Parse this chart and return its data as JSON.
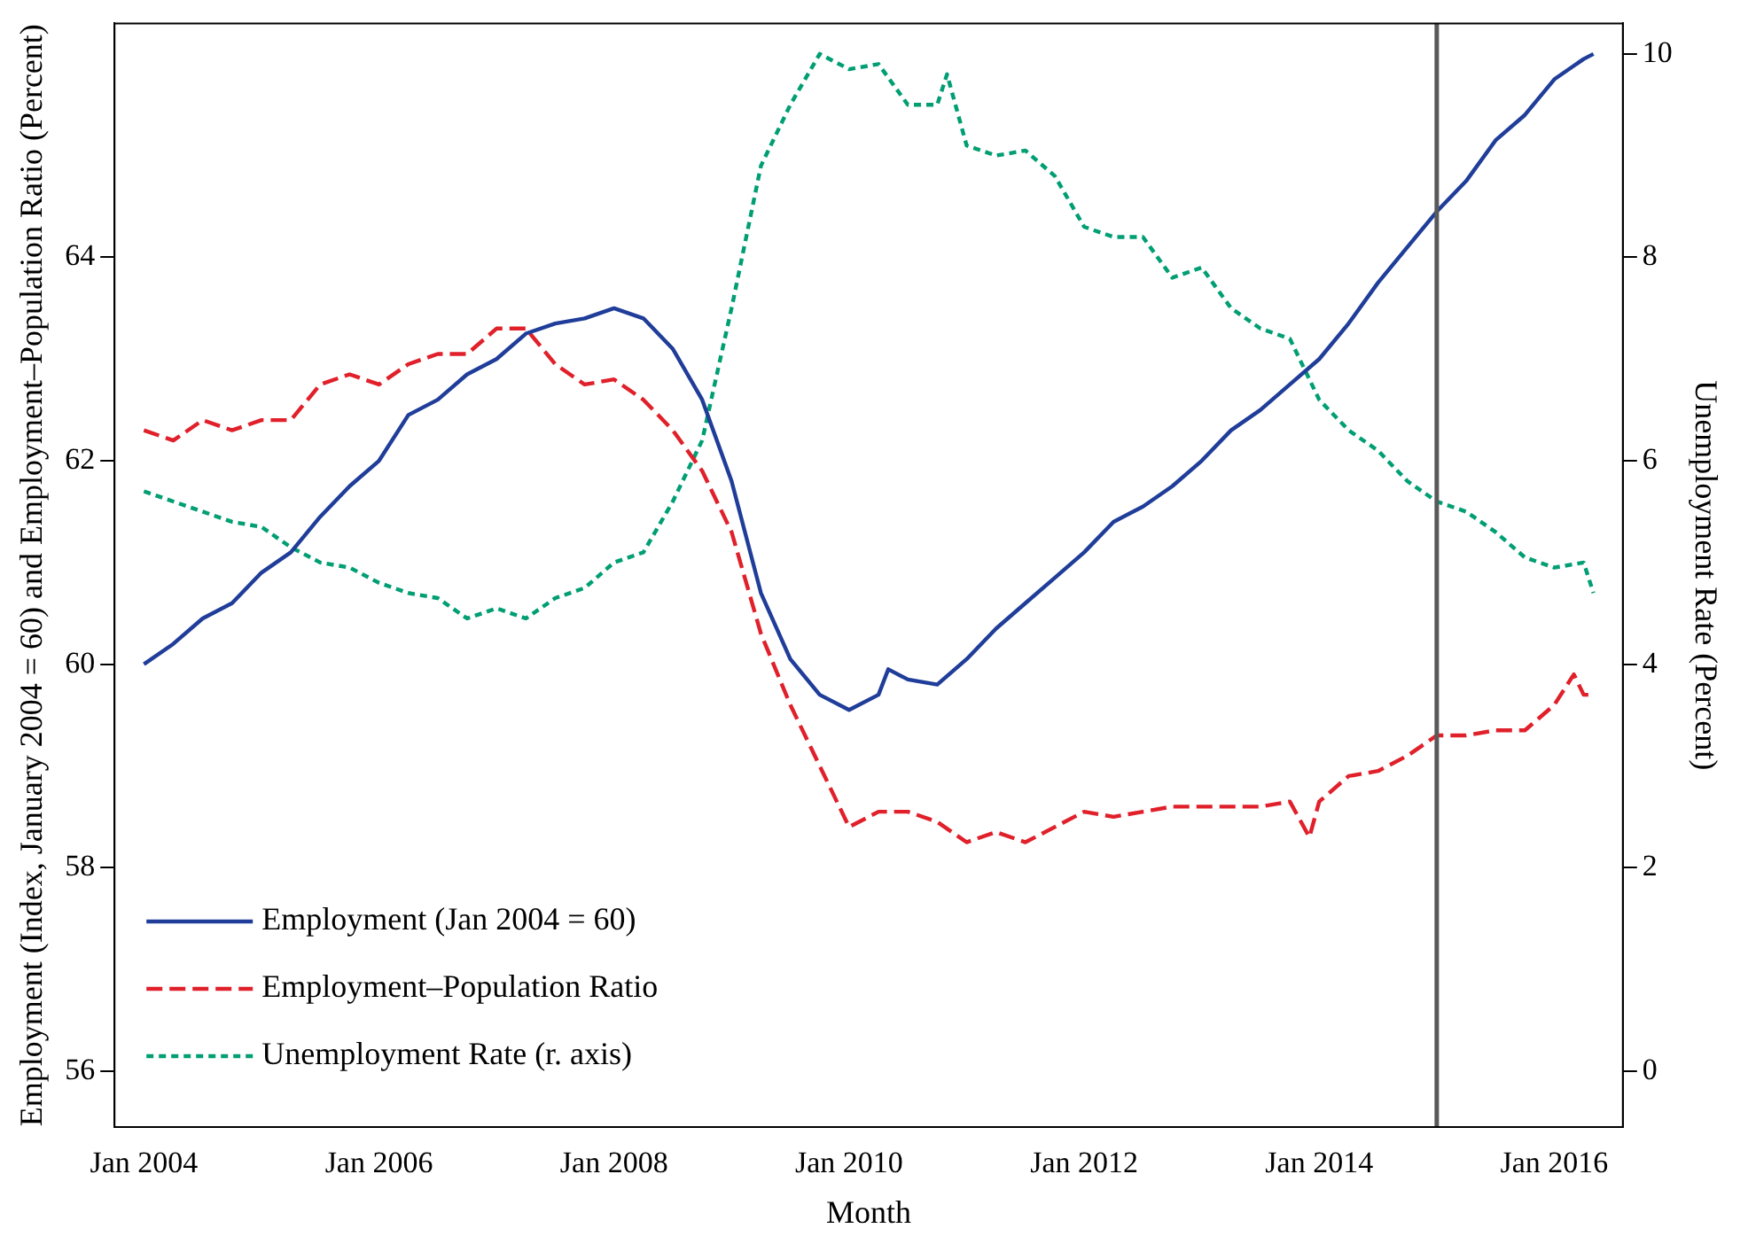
{
  "chart_data": {
    "type": "line",
    "xlabel": "Month",
    "ylabel": "Employment (Index, January 2004 = 60) and Employment–Population Ratio (Percent)",
    "y2label": "Unemployment Rate (Percent)",
    "xlim": [
      "2003-10",
      "2016-08"
    ],
    "xticks": [
      {
        "value": "2004-01",
        "label": "Jan 2004"
      },
      {
        "value": "2006-01",
        "label": "Jan 2006"
      },
      {
        "value": "2008-01",
        "label": "Jan 2008"
      },
      {
        "value": "2010-01",
        "label": "Jan 2010"
      },
      {
        "value": "2012-01",
        "label": "Jan 2012"
      },
      {
        "value": "2014-01",
        "label": "Jan 2014"
      },
      {
        "value": "2016-01",
        "label": "Jan 2016"
      }
    ],
    "ylim": [
      55.45,
      66.3
    ],
    "yticks": [
      56,
      58,
      60,
      62,
      64
    ],
    "y2lim": [
      -0.55,
      10.3
    ],
    "y2ticks": [
      0,
      2,
      4,
      6,
      8,
      10
    ],
    "grid": false,
    "legend": "bottom left",
    "marker": "none",
    "ref_lines": [
      {
        "axis": "x",
        "value": "2015-01",
        "color": "#595959",
        "line_style": "solid"
      }
    ],
    "series": [
      {
        "name": "Employment (Jan 2004 = 60)",
        "color": "#1f3d99",
        "line_style": "solid",
        "x": [
          "2004-01",
          "2004-04",
          "2004-07",
          "2004-10",
          "2005-01",
          "2005-04",
          "2005-07",
          "2005-10",
          "2006-01",
          "2006-04",
          "2006-07",
          "2006-10",
          "2007-01",
          "2007-04",
          "2007-07",
          "2007-10",
          "2008-01",
          "2008-04",
          "2008-07",
          "2008-10",
          "2009-01",
          "2009-04",
          "2009-07",
          "2009-10",
          "2010-01",
          "2010-04",
          "2010-05",
          "2010-07",
          "2010-10",
          "2011-01",
          "2011-04",
          "2011-07",
          "2011-10",
          "2012-01",
          "2012-04",
          "2012-07",
          "2012-10",
          "2013-01",
          "2013-04",
          "2013-07",
          "2013-10",
          "2014-01",
          "2014-04",
          "2014-07",
          "2014-10",
          "2015-01",
          "2015-04",
          "2015-07",
          "2015-10",
          "2016-01",
          "2016-04",
          "2016-05"
        ],
        "values": [
          60.0,
          60.2,
          60.45,
          60.6,
          60.9,
          61.1,
          61.45,
          61.75,
          62.0,
          62.45,
          62.6,
          62.85,
          63.0,
          63.25,
          63.35,
          63.4,
          63.5,
          63.4,
          63.1,
          62.6,
          61.8,
          60.7,
          60.05,
          59.7,
          59.55,
          59.7,
          59.95,
          59.85,
          59.8,
          60.05,
          60.35,
          60.6,
          60.85,
          61.1,
          61.4,
          61.55,
          61.75,
          62.0,
          62.3,
          62.5,
          62.75,
          63.0,
          63.35,
          63.75,
          64.1,
          64.45,
          64.75,
          65.15,
          65.4,
          65.75,
          65.95,
          66.0
        ]
      },
      {
        "name": "Employment–Population Ratio",
        "color": "#e0202a",
        "line_style": "dashed",
        "x": [
          "2004-01",
          "2004-04",
          "2004-07",
          "2004-10",
          "2005-01",
          "2005-04",
          "2005-07",
          "2005-10",
          "2006-01",
          "2006-04",
          "2006-07",
          "2006-10",
          "2007-01",
          "2007-04",
          "2007-07",
          "2007-10",
          "2008-01",
          "2008-04",
          "2008-07",
          "2008-10",
          "2009-01",
          "2009-04",
          "2009-07",
          "2009-10",
          "2010-01",
          "2010-04",
          "2010-07",
          "2010-10",
          "2011-01",
          "2011-04",
          "2011-07",
          "2011-10",
          "2012-01",
          "2012-04",
          "2012-07",
          "2012-10",
          "2013-01",
          "2013-04",
          "2013-07",
          "2013-10",
          "2013-12",
          "2014-01",
          "2014-04",
          "2014-07",
          "2014-10",
          "2015-01",
          "2015-04",
          "2015-07",
          "2015-10",
          "2016-01",
          "2016-03",
          "2016-04",
          "2016-05"
        ],
        "values": [
          62.3,
          62.2,
          62.4,
          62.3,
          62.4,
          62.4,
          62.75,
          62.85,
          62.75,
          62.95,
          63.05,
          63.05,
          63.3,
          63.3,
          62.95,
          62.75,
          62.8,
          62.6,
          62.3,
          61.9,
          61.3,
          60.3,
          59.6,
          59.0,
          58.4,
          58.55,
          58.55,
          58.45,
          58.25,
          58.35,
          58.25,
          58.4,
          58.55,
          58.5,
          58.55,
          58.6,
          58.6,
          58.6,
          58.6,
          58.65,
          58.3,
          58.65,
          58.9,
          58.95,
          59.1,
          59.3,
          59.3,
          59.35,
          59.35,
          59.6,
          59.9,
          59.7,
          59.7
        ]
      },
      {
        "name": "Unemployment Rate (r. axis)",
        "color": "#009e73",
        "line_style": "dotted",
        "axis": "y2",
        "x": [
          "2004-01",
          "2004-04",
          "2004-07",
          "2004-10",
          "2005-01",
          "2005-04",
          "2005-07",
          "2005-10",
          "2006-01",
          "2006-04",
          "2006-07",
          "2006-10",
          "2007-01",
          "2007-04",
          "2007-07",
          "2007-10",
          "2008-01",
          "2008-04",
          "2008-07",
          "2008-10",
          "2009-01",
          "2009-04",
          "2009-07",
          "2009-10",
          "2010-01",
          "2010-04",
          "2010-07",
          "2010-10",
          "2010-11",
          "2011-01",
          "2011-04",
          "2011-07",
          "2011-10",
          "2012-01",
          "2012-04",
          "2012-07",
          "2012-10",
          "2013-01",
          "2013-04",
          "2013-07",
          "2013-10",
          "2014-01",
          "2014-04",
          "2014-07",
          "2014-10",
          "2015-01",
          "2015-04",
          "2015-07",
          "2015-10",
          "2016-01",
          "2016-04",
          "2016-05"
        ],
        "values": [
          5.7,
          5.6,
          5.5,
          5.4,
          5.35,
          5.15,
          5.0,
          4.95,
          4.8,
          4.7,
          4.65,
          4.45,
          4.55,
          4.45,
          4.65,
          4.75,
          5.0,
          5.1,
          5.6,
          6.2,
          7.5,
          8.9,
          9.5,
          10.0,
          9.85,
          9.9,
          9.5,
          9.5,
          9.8,
          9.1,
          9.0,
          9.05,
          8.8,
          8.3,
          8.2,
          8.2,
          7.8,
          7.9,
          7.5,
          7.3,
          7.2,
          6.6,
          6.3,
          6.1,
          5.8,
          5.6,
          5.5,
          5.3,
          5.05,
          4.95,
          5.0,
          4.7
        ]
      }
    ]
  }
}
